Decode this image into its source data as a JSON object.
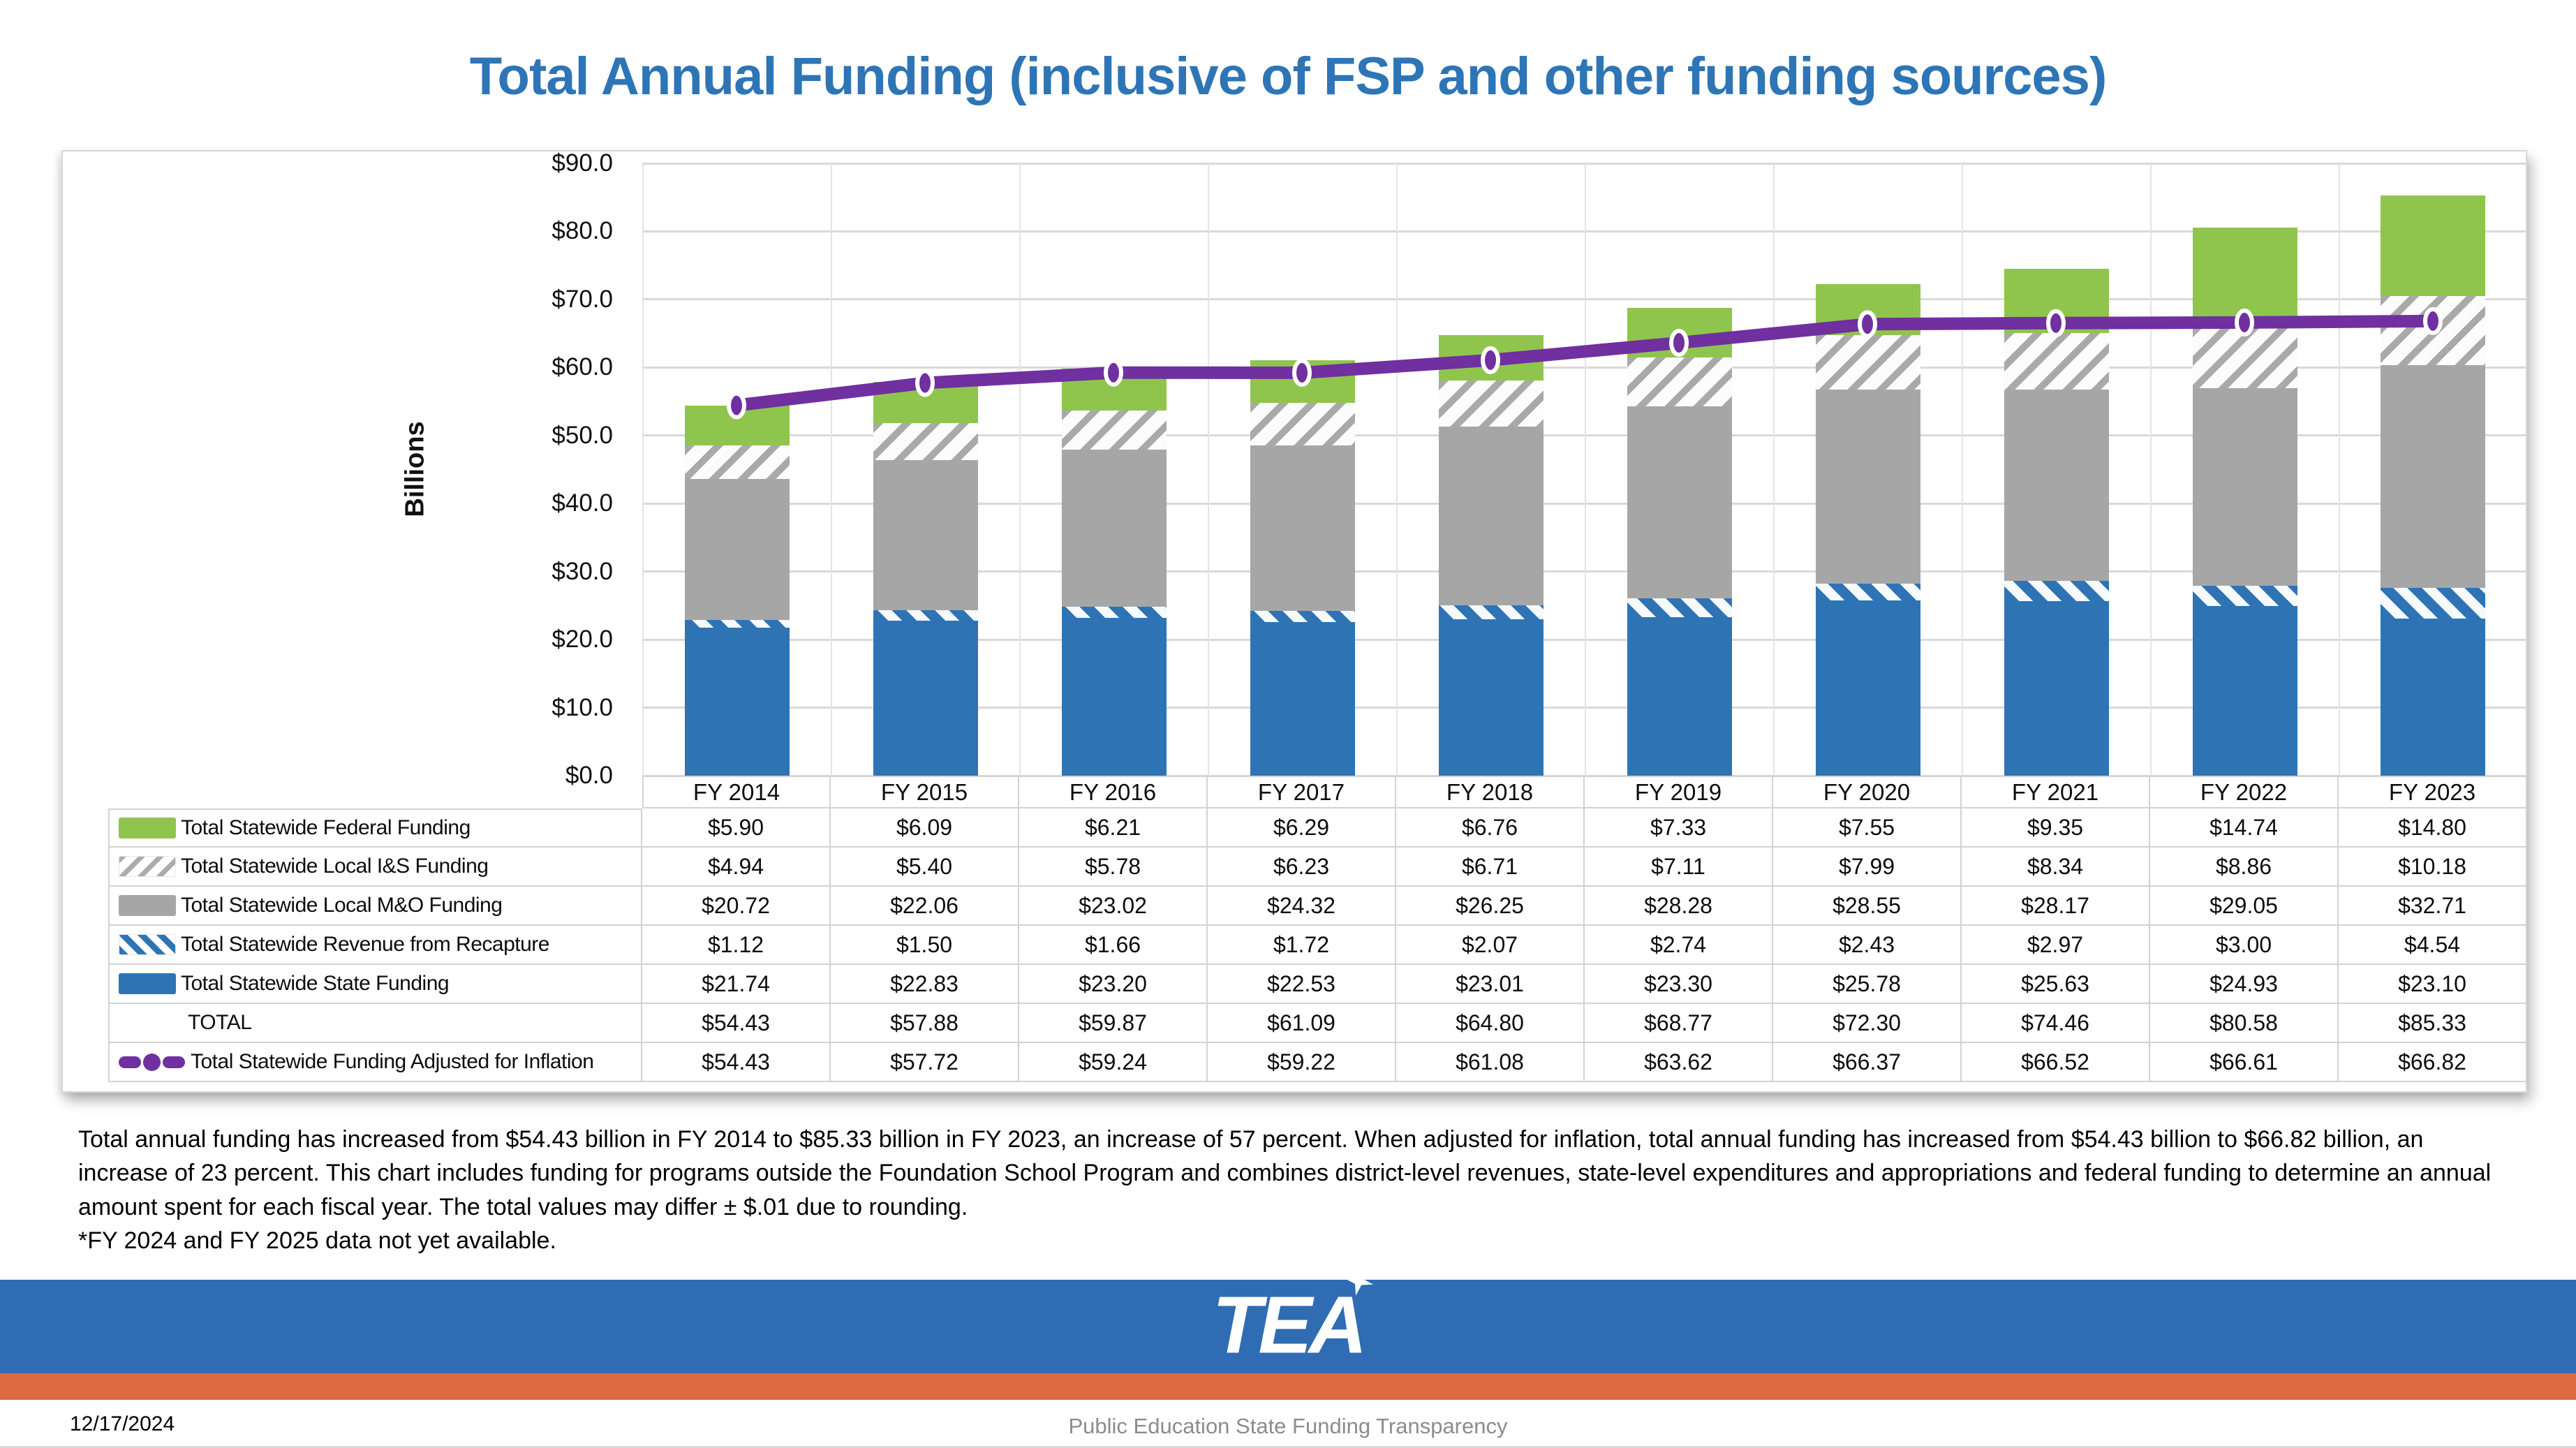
{
  "title": "Total Annual Funding (inclusive of FSP and other funding sources)",
  "colors": {
    "title_blue": "#2E75B6",
    "bar_blue": "#2E74B5",
    "bar_gray": "#A6A6A6",
    "bar_green": "#8FC54D",
    "line_purple": "#7030A0",
    "gridline_gray": "#D9D9D9",
    "banner_blue": "#2F6CB3",
    "banner_orange": "#DF6A41",
    "caption_gray": "#8C8C8C"
  },
  "chart_data": {
    "type": "bar",
    "subtype": "stacked-bars-with-line-overlay",
    "title": "Total Annual Funding (inclusive of FSP and other funding sources)",
    "xlabel": "",
    "ylabel": "Billions",
    "ylim": [
      0,
      90
    ],
    "ytick_step": 10,
    "ytick_labels": [
      "$0.0",
      "$10.0",
      "$20.0",
      "$30.0",
      "$40.0",
      "$50.0",
      "$60.0",
      "$70.0",
      "$80.0",
      "$90.0"
    ],
    "grid": true,
    "legend_position": "table-left-column",
    "categories": [
      "FY 2014",
      "FY 2015",
      "FY 2016",
      "FY 2017",
      "FY 2018",
      "FY 2019",
      "FY 2020",
      "FY 2021",
      "FY 2022",
      "FY 2023"
    ],
    "series": [
      {
        "name": "Total Statewide Federal Funding",
        "style": "solid-green",
        "values": [
          5.9,
          6.09,
          6.21,
          6.29,
          6.76,
          7.33,
          7.55,
          9.35,
          14.74,
          14.8
        ]
      },
      {
        "name": "Total Statewide Local I&S Funding",
        "style": "hatch-gray",
        "values": [
          4.94,
          5.4,
          5.78,
          6.23,
          6.71,
          7.11,
          7.99,
          8.34,
          8.86,
          10.18
        ]
      },
      {
        "name": "Total Statewide Local M&O Funding",
        "style": "solid-gray",
        "values": [
          20.72,
          22.06,
          23.02,
          24.32,
          26.25,
          28.28,
          28.55,
          28.17,
          29.05,
          32.71
        ]
      },
      {
        "name": "Total Statewide Revenue from Recapture",
        "style": "hatch-blue",
        "values": [
          1.12,
          1.5,
          1.66,
          1.72,
          2.07,
          2.74,
          2.43,
          2.97,
          3.0,
          4.54
        ]
      },
      {
        "name": "Total Statewide State Funding",
        "style": "solid-blue",
        "values": [
          21.74,
          22.83,
          23.2,
          22.53,
          23.01,
          23.3,
          25.78,
          25.63,
          24.93,
          23.1
        ]
      }
    ],
    "total_row": {
      "name": "TOTAL",
      "values": [
        54.43,
        57.88,
        59.87,
        61.09,
        64.8,
        68.77,
        72.3,
        74.46,
        80.58,
        85.33
      ]
    },
    "line_series": {
      "name": "Total Statewide Funding Adjusted for Inflation",
      "style": "line-purple",
      "values": [
        54.43,
        57.72,
        59.24,
        59.22,
        61.08,
        63.62,
        66.37,
        66.52,
        66.61,
        66.82
      ]
    }
  },
  "notes": {
    "paragraph": "Total annual funding has increased from $54.43 billion in FY 2014 to $85.33 billion in FY 2023, an increase of 57 percent.  When adjusted for inflation, total annual funding has increased from $54.43 billion to $66.82 billion, an increase of 23 percent.  This chart includes funding for programs outside the Foundation School Program and combines district-level revenues, state-level expenditures and appropriations and federal funding to determine an annual amount spent for each fiscal year. The total values may differ ± $.01 due to rounding.",
    "footnote": " *FY 2024 and FY 2025 data not yet available."
  },
  "footer": {
    "logo": "TEA",
    "date": "12/17/2024",
    "caption": "Public Education State Funding Transparency"
  }
}
